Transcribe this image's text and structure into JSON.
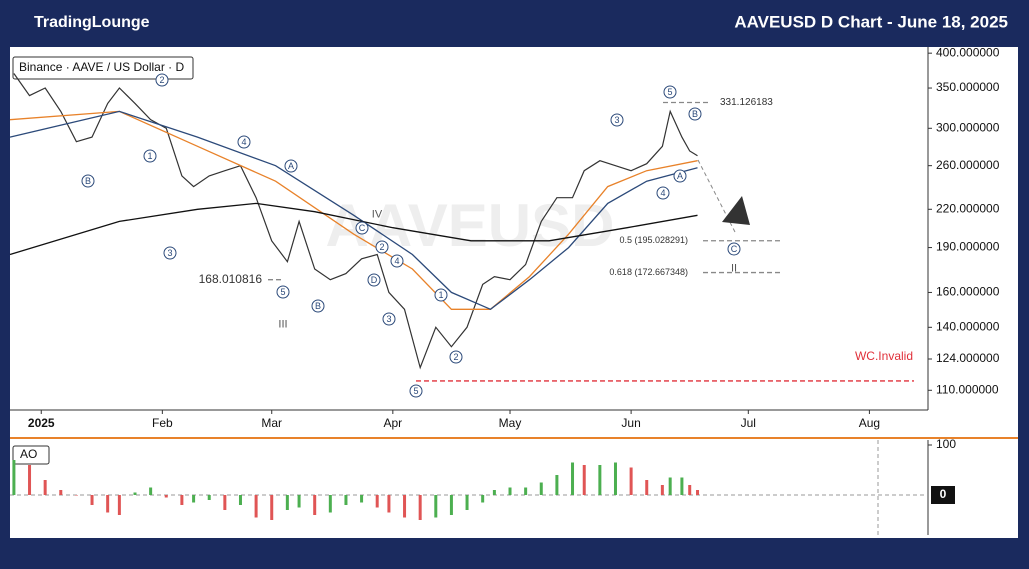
{
  "chart_data": {
    "type": "line",
    "title": "AAVEUSD D Chart - June 18, 2025",
    "logo": "TradingLounge",
    "legend_text": "Binance · AAVE / US Dollar · D",
    "watermark": "AAVEUSD",
    "log_scale": true,
    "xlim": [
      -8,
      227
    ],
    "xticks": [
      {
        "value": 0,
        "label": "2025"
      },
      {
        "value": 31,
        "label": "Feb"
      },
      {
        "value": 59,
        "label": "Mar"
      },
      {
        "value": 90,
        "label": "Apr"
      },
      {
        "value": 120,
        "label": "May"
      },
      {
        "value": 151,
        "label": "Jun"
      },
      {
        "value": 181,
        "label": "Jul"
      },
      {
        "value": 212,
        "label": "Aug"
      }
    ],
    "ylim": [
      102,
      408
    ],
    "yticks": [
      {
        "value": 400,
        "label": "400.000000"
      },
      {
        "value": 350,
        "label": "350.000000"
      },
      {
        "value": 300,
        "label": "300.000000"
      },
      {
        "value": 260,
        "label": "260.000000"
      },
      {
        "value": 220,
        "label": "220.000000"
      },
      {
        "value": 190,
        "label": "190.000000"
      },
      {
        "value": 160,
        "label": "160.000000"
      },
      {
        "value": 140,
        "label": "140.000000"
      },
      {
        "value": 124,
        "label": "124.000000"
      },
      {
        "value": 110,
        "label": "110.000000"
      }
    ],
    "series": [
      {
        "color": "#333333",
        "x": [
          -7,
          -3,
          1,
          5,
          9,
          13,
          17,
          20,
          24,
          28,
          32,
          36,
          39,
          43,
          47,
          51,
          55,
          59,
          63,
          66,
          70,
          74,
          78,
          82,
          86,
          89,
          93,
          97,
          101,
          105,
          109,
          113,
          116,
          120,
          124,
          128,
          132,
          136,
          139,
          143,
          147,
          151,
          155,
          159,
          161,
          164,
          166,
          168
        ],
        "values": [
          370,
          340,
          350,
          320,
          285,
          290,
          330,
          350,
          330,
          310,
          300,
          250,
          240,
          250,
          255,
          260,
          230,
          195,
          180,
          210,
          175,
          168,
          172,
          182,
          185,
          160,
          150,
          120,
          140,
          130,
          140,
          165,
          170,
          168,
          178,
          210,
          230,
          230,
          255,
          265,
          260,
          255,
          262,
          280,
          320,
          290,
          275,
          270
        ]
      },
      {
        "color": "#e8822a",
        "x": [
          -8,
          20,
          40,
          60,
          80,
          95,
          105,
          115,
          125,
          135,
          145,
          155,
          168
        ],
        "values": [
          310,
          320,
          280,
          245,
          200,
          175,
          150,
          150,
          170,
          200,
          240,
          255,
          265
        ]
      },
      {
        "color": "#2c4a7a",
        "x": [
          -8,
          20,
          40,
          60,
          80,
          95,
          105,
          115,
          125,
          135,
          145,
          155,
          168
        ],
        "values": [
          290,
          320,
          290,
          260,
          215,
          185,
          160,
          150,
          168,
          190,
          225,
          245,
          258
        ]
      },
      {
        "color": "#111111",
        "x": [
          -8,
          20,
          40,
          55,
          70,
          90,
          110,
          130,
          150,
          168
        ],
        "values": [
          185,
          210,
          220,
          225,
          218,
          205,
          195,
          195,
          205,
          215
        ]
      }
    ],
    "levels": [
      {
        "value": 331.126183,
        "label": "331.126183"
      },
      {
        "value": 195.028291,
        "label": "0.5 (195.028291)"
      },
      {
        "value": 172.667348,
        "label": "0.618 (172.667348)"
      },
      {
        "value": 168.010816,
        "label": "168.010816"
      },
      {
        "value": 114,
        "label": "WC.Invalid"
      }
    ],
    "annotations": [
      "B",
      "2",
      "1",
      "3",
      "4",
      "A",
      "5",
      "B",
      "C",
      "2",
      "D",
      "4",
      "3",
      "1",
      "5",
      "2",
      "3",
      "5",
      "B",
      "A",
      "4",
      "C",
      "IV",
      "III",
      "II"
    ],
    "ao": {
      "label": "AO",
      "ylim": [
        -80,
        110
      ],
      "yticks": [
        100,
        0
      ],
      "x": [
        -7,
        -3,
        1,
        5,
        9,
        13,
        17,
        20,
        24,
        28,
        32,
        36,
        39,
        43,
        47,
        51,
        55,
        59,
        63,
        66,
        70,
        74,
        78,
        82,
        86,
        89,
        93,
        97,
        101,
        105,
        109,
        113,
        116,
        120,
        124,
        128,
        132,
        136,
        139,
        143,
        147,
        151,
        155,
        159,
        161,
        164,
        166,
        168
      ],
      "values": [
        70,
        60,
        30,
        10,
        0,
        -20,
        -35,
        -40,
        5,
        15,
        -5,
        -20,
        -15,
        -10,
        -30,
        -20,
        -45,
        -50,
        -30,
        -25,
        -40,
        -35,
        -20,
        -15,
        -25,
        -35,
        -45,
        -50,
        -45,
        -40,
        -30,
        -15,
        10,
        15,
        15,
        25,
        40,
        65,
        60,
        60,
        65,
        55,
        30,
        20,
        35,
        35,
        20,
        10
      ]
    }
  }
}
